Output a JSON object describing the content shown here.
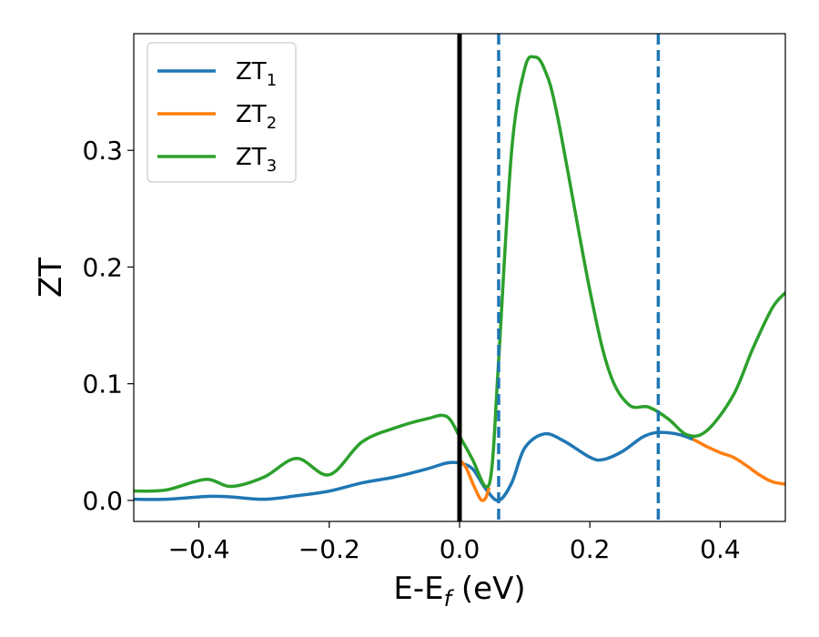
{
  "chart_data": {
    "type": "line",
    "xlabel": "E-E",
    "xlabel_sub": "f",
    "xlabel_unit": " (eV)",
    "ylabel": "ZT",
    "xlim": [
      -0.5,
      0.5
    ],
    "ylim": [
      -0.018,
      0.4
    ],
    "xticks": [
      -0.4,
      -0.2,
      0.0,
      0.2,
      0.4
    ],
    "xtick_labels": [
      "−0.4",
      "−0.2",
      "0.0",
      "0.2",
      "0.4"
    ],
    "yticks": [
      0.0,
      0.1,
      0.2,
      0.3
    ],
    "ytick_labels": [
      "0.0",
      "0.1",
      "0.2",
      "0.3"
    ],
    "grid": false,
    "legend_position": "top-left",
    "vertical_lines": [
      {
        "x": 0.0,
        "style": "solid",
        "color": "#000000"
      },
      {
        "x": 0.06,
        "style": "dashed",
        "color": "#1f77b4"
      },
      {
        "x": 0.305,
        "style": "dashed",
        "color": "#1f77b4"
      }
    ],
    "series": [
      {
        "name": "ZT",
        "name_sub": "1",
        "color": "#1f77b4",
        "points": [
          [
            -0.5,
            0.001
          ],
          [
            -0.45,
            0.001
          ],
          [
            -0.4,
            0.003
          ],
          [
            -0.38,
            0.0035
          ],
          [
            -0.35,
            0.003
          ],
          [
            -0.3,
            0.001
          ],
          [
            -0.25,
            0.004
          ],
          [
            -0.2,
            0.008
          ],
          [
            -0.15,
            0.015
          ],
          [
            -0.1,
            0.02
          ],
          [
            -0.05,
            0.027
          ],
          [
            -0.02,
            0.032
          ],
          [
            0.0,
            0.032
          ],
          [
            0.02,
            0.027
          ],
          [
            0.04,
            0.01
          ],
          [
            0.06,
            0.0
          ],
          [
            0.08,
            0.015
          ],
          [
            0.1,
            0.045
          ],
          [
            0.13,
            0.057
          ],
          [
            0.16,
            0.051
          ],
          [
            0.2,
            0.037
          ],
          [
            0.22,
            0.035
          ],
          [
            0.25,
            0.042
          ],
          [
            0.28,
            0.054
          ],
          [
            0.3,
            0.058
          ],
          [
            0.32,
            0.058
          ],
          [
            0.34,
            0.056
          ],
          [
            0.36,
            0.052
          ]
        ]
      },
      {
        "name": "ZT",
        "name_sub": "2",
        "color": "#ff7f0e",
        "points": [
          [
            0.0,
            0.035
          ],
          [
            0.01,
            0.028
          ],
          [
            0.02,
            0.015
          ],
          [
            0.03,
            0.003
          ],
          [
            0.035,
            0.0
          ],
          [
            0.04,
            0.002
          ],
          [
            0.045,
            0.01
          ],
          [
            0.36,
            0.052
          ],
          [
            0.38,
            0.046
          ],
          [
            0.4,
            0.041
          ],
          [
            0.42,
            0.037
          ],
          [
            0.44,
            0.03
          ],
          [
            0.46,
            0.022
          ],
          [
            0.48,
            0.016
          ],
          [
            0.5,
            0.014
          ]
        ]
      },
      {
        "name": "ZT",
        "name_sub": "3",
        "color": "#2ca02c",
        "points": [
          [
            -0.5,
            0.008
          ],
          [
            -0.45,
            0.009
          ],
          [
            -0.39,
            0.018
          ],
          [
            -0.35,
            0.012
          ],
          [
            -0.3,
            0.02
          ],
          [
            -0.25,
            0.036
          ],
          [
            -0.2,
            0.022
          ],
          [
            -0.15,
            0.05
          ],
          [
            -0.1,
            0.062
          ],
          [
            -0.05,
            0.07
          ],
          [
            -0.02,
            0.072
          ],
          [
            0.0,
            0.055
          ],
          [
            0.02,
            0.035
          ],
          [
            0.04,
            0.012
          ],
          [
            0.05,
            0.03
          ],
          [
            0.06,
            0.12
          ],
          [
            0.08,
            0.3
          ],
          [
            0.1,
            0.37
          ],
          [
            0.115,
            0.38
          ],
          [
            0.13,
            0.37
          ],
          [
            0.15,
            0.33
          ],
          [
            0.2,
            0.18
          ],
          [
            0.23,
            0.11
          ],
          [
            0.26,
            0.082
          ],
          [
            0.29,
            0.08
          ],
          [
            0.32,
            0.07
          ],
          [
            0.35,
            0.056
          ],
          [
            0.38,
            0.06
          ],
          [
            0.42,
            0.09
          ],
          [
            0.45,
            0.13
          ],
          [
            0.48,
            0.165
          ],
          [
            0.5,
            0.178
          ]
        ]
      }
    ]
  }
}
